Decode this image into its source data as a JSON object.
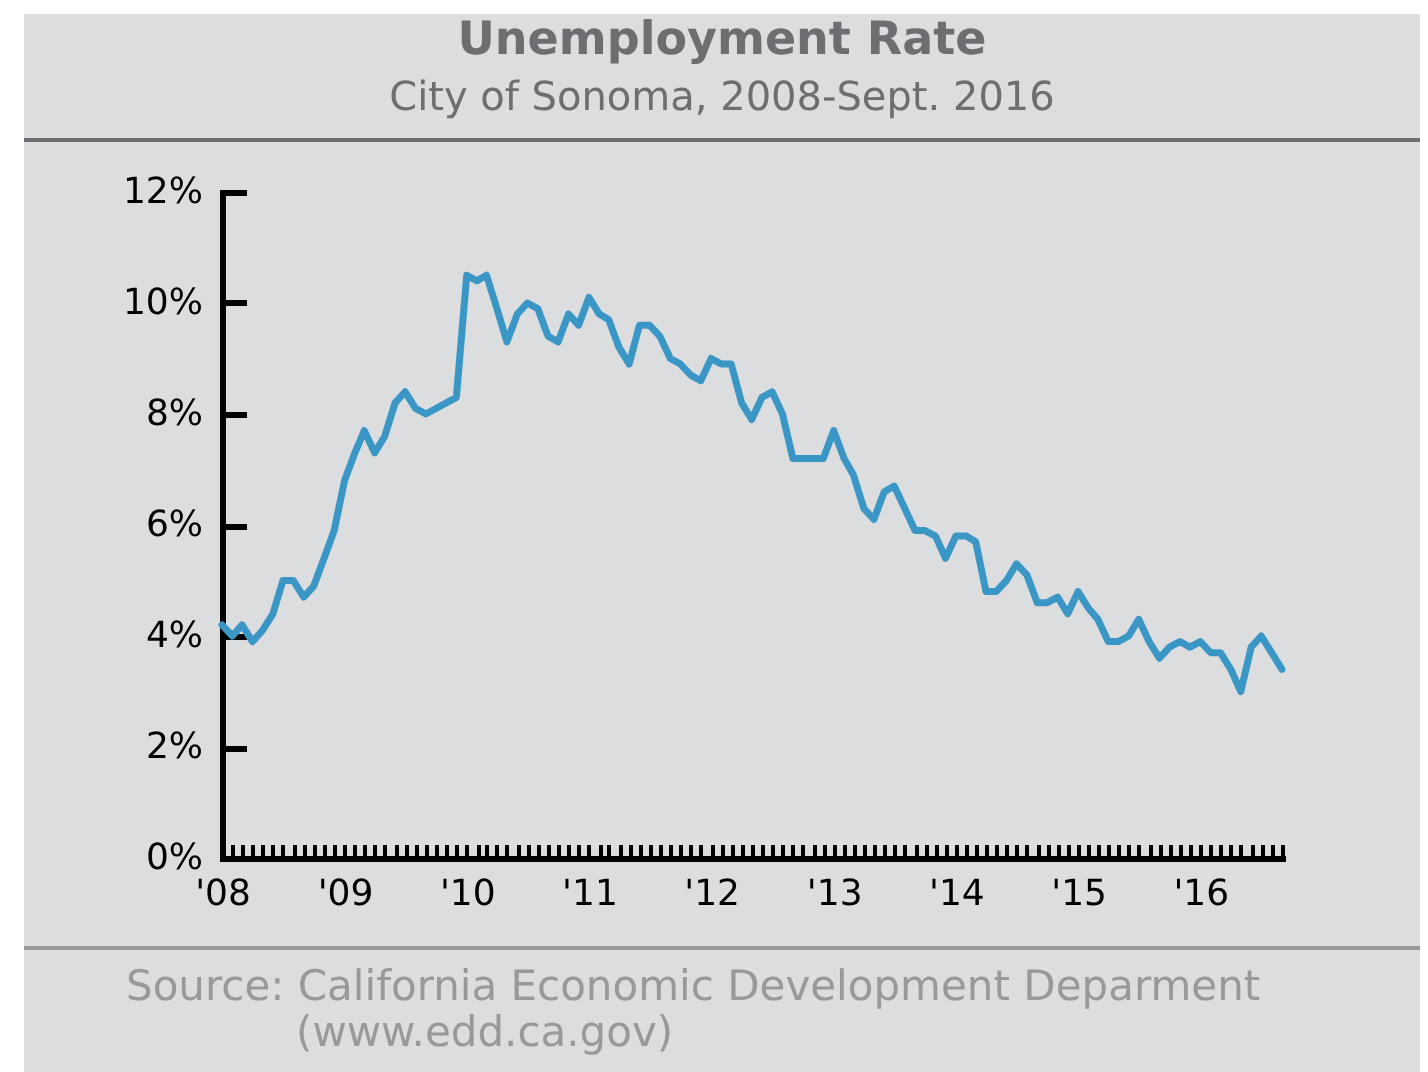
{
  "chart_data": {
    "type": "line",
    "title": "Unemployment Rate",
    "subtitle": "City of Sonoma, 2008-Sept. 2016",
    "annotations": [
      "Source: California Economic Development Deparment",
      "(www.edd.ca.gov)"
    ],
    "x": [
      "2008-01",
      "2008-02",
      "2008-03",
      "2008-04",
      "2008-05",
      "2008-06",
      "2008-07",
      "2008-08",
      "2008-09",
      "2008-10",
      "2008-11",
      "2008-12",
      "2009-01",
      "2009-02",
      "2009-03",
      "2009-04",
      "2009-05",
      "2009-06",
      "2009-07",
      "2009-08",
      "2009-09",
      "2009-10",
      "2009-11",
      "2009-12",
      "2010-01",
      "2010-02",
      "2010-03",
      "2010-04",
      "2010-05",
      "2010-06",
      "2010-07",
      "2010-08",
      "2010-09",
      "2010-10",
      "2010-11",
      "2010-12",
      "2011-01",
      "2011-02",
      "2011-03",
      "2011-04",
      "2011-05",
      "2011-06",
      "2011-07",
      "2011-08",
      "2011-09",
      "2011-10",
      "2011-11",
      "2011-12",
      "2012-01",
      "2012-02",
      "2012-03",
      "2012-04",
      "2012-05",
      "2012-06",
      "2012-07",
      "2012-08",
      "2012-09",
      "2012-10",
      "2012-11",
      "2012-12",
      "2013-01",
      "2013-02",
      "2013-03",
      "2013-04",
      "2013-05",
      "2013-06",
      "2013-07",
      "2013-08",
      "2013-09",
      "2013-10",
      "2013-11",
      "2013-12",
      "2014-01",
      "2014-02",
      "2014-03",
      "2014-04",
      "2014-05",
      "2014-06",
      "2014-07",
      "2014-08",
      "2014-09",
      "2014-10",
      "2014-11",
      "2014-12",
      "2015-01",
      "2015-02",
      "2015-03",
      "2015-04",
      "2015-05",
      "2015-06",
      "2015-07",
      "2015-08",
      "2015-09",
      "2015-10",
      "2015-11",
      "2015-12",
      "2016-01",
      "2016-02",
      "2016-03",
      "2016-04",
      "2016-05",
      "2016-06",
      "2016-07",
      "2016-08",
      "2016-09"
    ],
    "series": [
      {
        "color": "#3a96c5",
        "values": [
          4.2,
          4.0,
          4.2,
          3.9,
          4.1,
          4.4,
          5.0,
          5.0,
          4.7,
          4.9,
          5.4,
          5.9,
          6.8,
          7.3,
          7.7,
          7.3,
          7.6,
          8.2,
          8.4,
          8.1,
          8.0,
          8.1,
          8.2,
          8.3,
          10.5,
          10.4,
          10.5,
          9.9,
          9.3,
          9.8,
          10.0,
          9.9,
          9.4,
          9.3,
          9.8,
          9.6,
          10.1,
          9.8,
          9.7,
          9.2,
          8.9,
          9.6,
          9.6,
          9.4,
          9.0,
          8.9,
          8.7,
          8.6,
          9.0,
          8.9,
          8.9,
          8.2,
          7.9,
          8.3,
          8.4,
          8.0,
          7.2,
          7.2,
          7.2,
          7.2,
          7.7,
          7.2,
          6.9,
          6.3,
          6.1,
          6.6,
          6.7,
          6.3,
          5.9,
          5.9,
          5.8,
          5.4,
          5.8,
          5.8,
          5.7,
          4.8,
          4.8,
          5.0,
          5.3,
          5.1,
          4.6,
          4.6,
          4.7,
          4.4,
          4.8,
          4.5,
          4.3,
          3.9,
          3.9,
          4.0,
          4.3,
          3.9,
          3.6,
          3.8,
          3.9,
          3.8,
          3.9,
          3.7,
          3.7,
          3.4,
          3.0,
          3.8,
          4.0,
          3.7,
          3.4
        ]
      }
    ],
    "xlim": [
      "2008-01",
      "2016-09"
    ],
    "xticks": [
      {
        "value": "2008-01",
        "label": "'08"
      },
      {
        "value": "2008-02",
        "label": null
      },
      {
        "value": "2008-03",
        "label": null
      },
      {
        "value": "2008-04",
        "label": null
      },
      {
        "value": "2008-05",
        "label": null
      },
      {
        "value": "2008-06",
        "label": null
      },
      {
        "value": "2008-07",
        "label": null
      },
      {
        "value": "2008-08",
        "label": null
      },
      {
        "value": "2008-09",
        "label": null
      },
      {
        "value": "2008-10",
        "label": null
      },
      {
        "value": "2008-11",
        "label": null
      },
      {
        "value": "2008-12",
        "label": null
      },
      {
        "value": "2009-01",
        "label": "'09"
      },
      {
        "value": "2009-02",
        "label": null
      },
      {
        "value": "2009-03",
        "label": null
      },
      {
        "value": "2009-04",
        "label": null
      },
      {
        "value": "2009-05",
        "label": null
      },
      {
        "value": "2009-06",
        "label": null
      },
      {
        "value": "2009-07",
        "label": null
      },
      {
        "value": "2009-08",
        "label": null
      },
      {
        "value": "2009-09",
        "label": null
      },
      {
        "value": "2009-10",
        "label": null
      },
      {
        "value": "2009-11",
        "label": null
      },
      {
        "value": "2009-12",
        "label": null
      },
      {
        "value": "2010-01",
        "label": "'10"
      },
      {
        "value": "2010-02",
        "label": null
      },
      {
        "value": "2010-03",
        "label": null
      },
      {
        "value": "2010-04",
        "label": null
      },
      {
        "value": "2010-05",
        "label": null
      },
      {
        "value": "2010-06",
        "label": null
      },
      {
        "value": "2010-07",
        "label": null
      },
      {
        "value": "2010-08",
        "label": null
      },
      {
        "value": "2010-09",
        "label": null
      },
      {
        "value": "2010-10",
        "label": null
      },
      {
        "value": "2010-11",
        "label": null
      },
      {
        "value": "2010-12",
        "label": null
      },
      {
        "value": "2011-01",
        "label": "'11"
      },
      {
        "value": "2011-02",
        "label": null
      },
      {
        "value": "2011-03",
        "label": null
      },
      {
        "value": "2011-04",
        "label": null
      },
      {
        "value": "2011-05",
        "label": null
      },
      {
        "value": "2011-06",
        "label": null
      },
      {
        "value": "2011-07",
        "label": null
      },
      {
        "value": "2011-08",
        "label": null
      },
      {
        "value": "2011-09",
        "label": null
      },
      {
        "value": "2011-10",
        "label": null
      },
      {
        "value": "2011-11",
        "label": null
      },
      {
        "value": "2011-12",
        "label": null
      },
      {
        "value": "2012-01",
        "label": "'12"
      },
      {
        "value": "2012-02",
        "label": null
      },
      {
        "value": "2012-03",
        "label": null
      },
      {
        "value": "2012-04",
        "label": null
      },
      {
        "value": "2012-05",
        "label": null
      },
      {
        "value": "2012-06",
        "label": null
      },
      {
        "value": "2012-07",
        "label": null
      },
      {
        "value": "2012-08",
        "label": null
      },
      {
        "value": "2012-09",
        "label": null
      },
      {
        "value": "2012-10",
        "label": null
      },
      {
        "value": "2012-11",
        "label": null
      },
      {
        "value": "2012-12",
        "label": null
      },
      {
        "value": "2013-01",
        "label": "'13"
      },
      {
        "value": "2013-02",
        "label": null
      },
      {
        "value": "2013-03",
        "label": null
      },
      {
        "value": "2013-04",
        "label": null
      },
      {
        "value": "2013-05",
        "label": null
      },
      {
        "value": "2013-06",
        "label": null
      },
      {
        "value": "2013-07",
        "label": null
      },
      {
        "value": "2013-08",
        "label": null
      },
      {
        "value": "2013-09",
        "label": null
      },
      {
        "value": "2013-10",
        "label": null
      },
      {
        "value": "2013-11",
        "label": null
      },
      {
        "value": "2013-12",
        "label": null
      },
      {
        "value": "2014-01",
        "label": "'14"
      },
      {
        "value": "2014-02",
        "label": null
      },
      {
        "value": "2014-03",
        "label": null
      },
      {
        "value": "2014-04",
        "label": null
      },
      {
        "value": "2014-05",
        "label": null
      },
      {
        "value": "2014-06",
        "label": null
      },
      {
        "value": "2014-07",
        "label": null
      },
      {
        "value": "2014-08",
        "label": null
      },
      {
        "value": "2014-09",
        "label": null
      },
      {
        "value": "2014-10",
        "label": null
      },
      {
        "value": "2014-11",
        "label": null
      },
      {
        "value": "2014-12",
        "label": null
      },
      {
        "value": "2015-01",
        "label": "'15"
      },
      {
        "value": "2015-02",
        "label": null
      },
      {
        "value": "2015-03",
        "label": null
      },
      {
        "value": "2015-04",
        "label": null
      },
      {
        "value": "2015-05",
        "label": null
      },
      {
        "value": "2015-06",
        "label": null
      },
      {
        "value": "2015-07",
        "label": null
      },
      {
        "value": "2015-08",
        "label": null
      },
      {
        "value": "2015-09",
        "label": null
      },
      {
        "value": "2015-10",
        "label": null
      },
      {
        "value": "2015-11",
        "label": null
      },
      {
        "value": "2015-12",
        "label": null
      },
      {
        "value": "2016-01",
        "label": "'16"
      },
      {
        "value": "2016-02",
        "label": null
      },
      {
        "value": "2016-03",
        "label": null
      },
      {
        "value": "2016-04",
        "label": null
      },
      {
        "value": "2016-05",
        "label": null
      },
      {
        "value": "2016-06",
        "label": null
      },
      {
        "value": "2016-07",
        "label": null
      },
      {
        "value": "2016-08",
        "label": null
      },
      {
        "value": "2016-09",
        "label": null
      }
    ],
    "ylim": [
      0,
      12
    ],
    "yticks": [
      {
        "value": 0,
        "label": "0%"
      },
      {
        "value": 2,
        "label": "2%"
      },
      {
        "value": 4,
        "label": "4%"
      },
      {
        "value": 6,
        "label": "6%"
      },
      {
        "value": 8,
        "label": "8%"
      },
      {
        "value": 10,
        "label": "10%"
      },
      {
        "value": 12,
        "label": "12%"
      }
    ],
    "line_style": "solid"
  }
}
